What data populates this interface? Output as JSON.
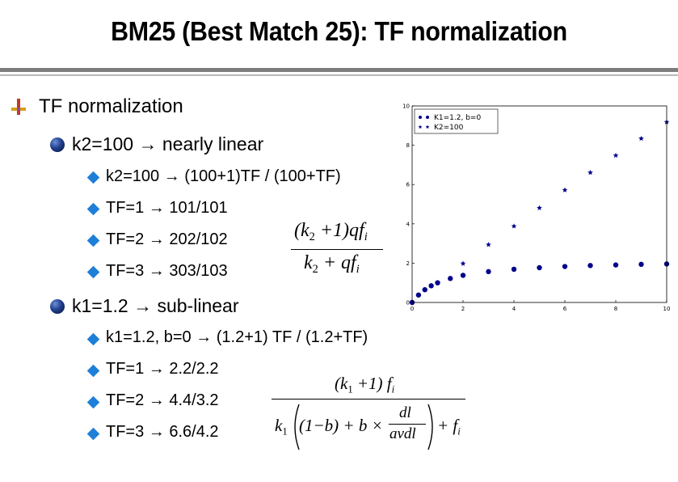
{
  "slide": {
    "title": "BM25 (Best Match 25): TF normalization",
    "bullet1": "TF normalization",
    "sub1": "k2=100 → nearly linear",
    "sub1_items": [
      "k2=100 → (100+1)TF / (100+TF)",
      "TF=1 → 101/101",
      "TF=2 → 202/102",
      "TF=3 → 303/103"
    ],
    "sub2": "k1=1.2 → sub-linear",
    "sub2_items": [
      "k1=1.2, b=0 → (1.2+1) TF / (1.2+TF)",
      "TF=1 → 2.2/2.2",
      "TF=2 → 4.4/3.2",
      "TF=3 → 6.6/4.2"
    ]
  },
  "formulas": {
    "f1_num": [
      "(k",
      "2",
      " +1)qf",
      "i"
    ],
    "f1_den": [
      "k",
      "2",
      " + qf",
      "i"
    ],
    "f2_num": [
      "(k",
      "1",
      " +1) f",
      "i"
    ],
    "f2_den": {
      "lead": [
        "k",
        "1"
      ],
      "inner": "(1−b) + b ×",
      "frac_num": "dl",
      "frac_den": "avdl",
      "tail": [
        "+ f",
        "i"
      ]
    }
  },
  "chart_data": {
    "type": "scatter",
    "x_range": [
      0,
      10
    ],
    "ylim": [
      0,
      10
    ],
    "x_ticks": [
      "0",
      "2",
      "4",
      "6",
      "8",
      "10"
    ],
    "y_ticks": [
      "0",
      "2",
      "4",
      "6",
      "8",
      "10"
    ],
    "legend_position": "top-left",
    "series": [
      {
        "name": "K1=1.2, b=0",
        "k": 1.2,
        "marker": "circle",
        "color": "#00008b",
        "x": [
          0,
          0.25,
          0.5,
          0.75,
          1,
          1.5,
          2,
          3,
          4,
          5,
          6,
          7,
          8,
          9,
          10
        ],
        "y": [
          0,
          0.38,
          0.65,
          0.85,
          1.0,
          1.22,
          1.38,
          1.57,
          1.69,
          1.77,
          1.83,
          1.88,
          1.91,
          1.94,
          1.96
        ]
      },
      {
        "name": "K2=100",
        "k": 100,
        "marker": "star",
        "color": "#00008b",
        "x": [
          0,
          1,
          2,
          3,
          4,
          5,
          6,
          7,
          8,
          9,
          10
        ],
        "y": [
          0,
          1.0,
          1.98,
          2.94,
          3.88,
          4.81,
          5.72,
          6.61,
          7.48,
          8.34,
          9.18
        ]
      }
    ]
  },
  "colors": {
    "ball": "#1f3f8f",
    "diamond": "#1e7fd9",
    "cross_red": "#c0392b",
    "cross_gold": "#d4a017"
  }
}
